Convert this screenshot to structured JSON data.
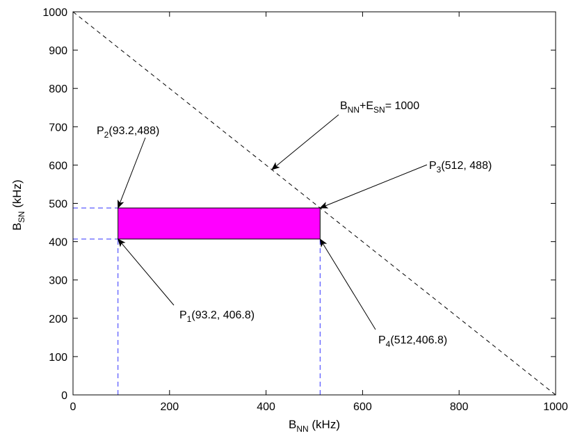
{
  "chart_data": {
    "type": "line",
    "xlabel": {
      "main": "B",
      "sub": "NN",
      "unit": " (kHz)"
    },
    "ylabel": {
      "main": "B",
      "sub": "SN",
      "unit": " (kHz)"
    },
    "xlim": [
      0,
      1000
    ],
    "ylim": [
      0,
      1000
    ],
    "xticks": [
      0,
      200,
      400,
      600,
      800,
      1000
    ],
    "yticks": [
      0,
      100,
      200,
      300,
      400,
      500,
      600,
      700,
      800,
      900,
      1000
    ],
    "grid": false,
    "colors": {
      "region": "#ff00ff",
      "guide": "#3333ff",
      "line": "#000000"
    },
    "constraint_line": {
      "points": [
        [
          0,
          1000
        ],
        [
          1000,
          0
        ]
      ],
      "style": "dashed",
      "label": {
        "t1": "B",
        "s1": "NN",
        "t2": "+E",
        "s2": "SN",
        "t3": "= 1000"
      },
      "arrow_target": [
        412,
        588
      ]
    },
    "region": {
      "x": [
        93.2,
        512
      ],
      "y": [
        406.8,
        488
      ]
    },
    "guides": {
      "x_values": [
        93.2,
        512
      ],
      "y_values": [
        406.8,
        488
      ],
      "style": "dashed"
    },
    "points": [
      {
        "name": "P",
        "sub": "1",
        "coords": "(93.2, 406.8)",
        "x": 93.2,
        "y": 406.8
      },
      {
        "name": "P",
        "sub": "2",
        "coords": "(93.2,488)",
        "x": 93.2,
        "y": 488
      },
      {
        "name": "P",
        "sub": "3",
        "coords": "(512, 488)",
        "x": 512,
        "y": 488
      },
      {
        "name": "P",
        "sub": "4",
        "coords": "(512,406.8)",
        "x": 512,
        "y": 406.8
      }
    ]
  }
}
